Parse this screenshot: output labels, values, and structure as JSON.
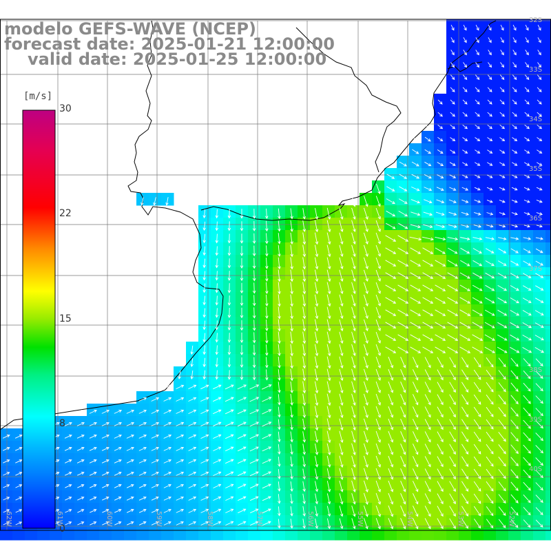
{
  "titles": {
    "line1": "modelo GEFS-WAVE (NCEP)",
    "line2": "forecast date: 2025-01-21 12:00:00",
    "line3": "valid date: 2025-01-25 12:00:00"
  },
  "colorbar": {
    "unit": "[m/s]",
    "ticks": [
      "30",
      "22",
      "15",
      "8",
      "0"
    ],
    "colors": [
      "#c2006a",
      "#ff0000",
      "#ff8a00",
      "#ffff00",
      "#00e000",
      "#00ffff",
      "#0060ff",
      "#0000ff"
    ]
  },
  "lat_labels": [
    "32S",
    "33S",
    "34S",
    "35S",
    "36S",
    "37S",
    "38S",
    "39S",
    "40S"
  ],
  "lon_labels": [
    "62W",
    "61W",
    "60W",
    "59W",
    "58W",
    "57W",
    "56W",
    "55W",
    "54W",
    "53W",
    "52W"
  ],
  "field": {
    "variable": "wind speed",
    "units": "m/s",
    "range": [
      0,
      30
    ]
  }
}
